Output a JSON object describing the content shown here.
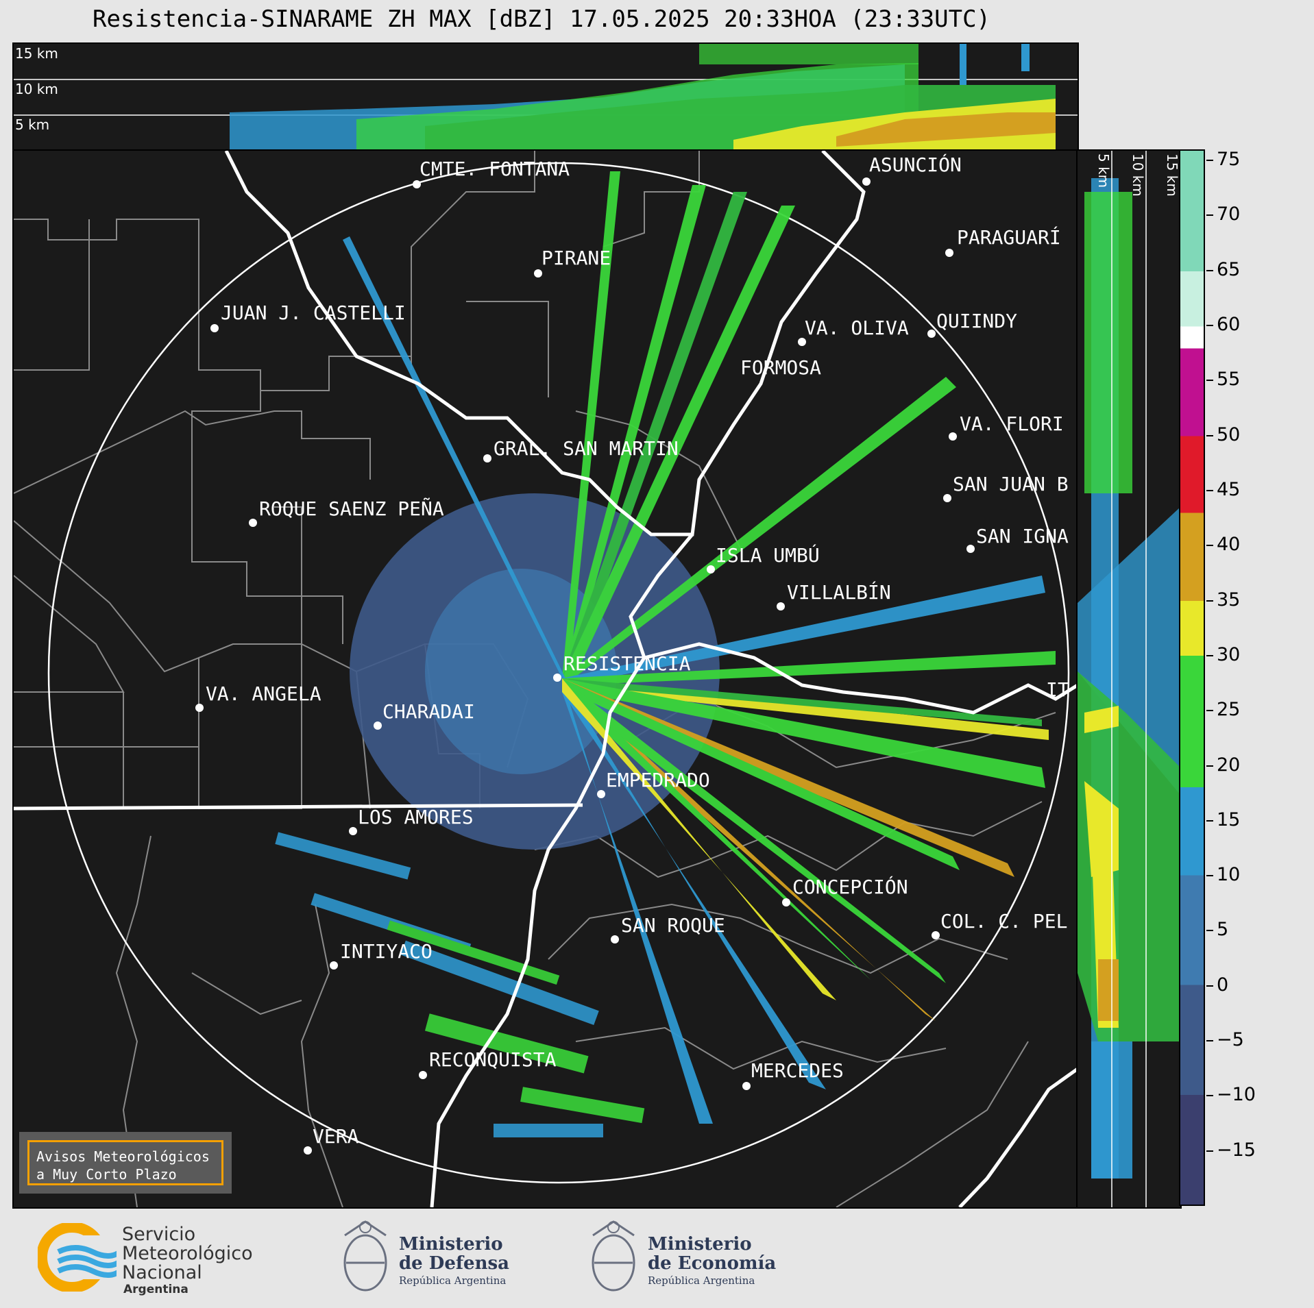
{
  "title": "Resistencia-SINARAME ZH MAX [dBZ] 17.05.2025 20:33HOA (23:33UTC)",
  "top_panel": {
    "alt_labels": [
      "15 km",
      "10 km",
      "5 km"
    ]
  },
  "side_panel": {
    "alt_labels": [
      "5 km",
      "10 km",
      "15 km"
    ]
  },
  "places": [
    {
      "name": "CMTE. FONTANA"
    },
    {
      "name": "ASUNCIÓN"
    },
    {
      "name": "PARAGUARÍ"
    },
    {
      "name": "PIRANE"
    },
    {
      "name": "JUAN J. CASTELLI"
    },
    {
      "name": "VA. OLIVA"
    },
    {
      "name": "QUIINDY"
    },
    {
      "name": "FORMOSA"
    },
    {
      "name": "VA. FLORI"
    },
    {
      "name": "GRAL. SAN MARTIN"
    },
    {
      "name": "SAN JUAN B"
    },
    {
      "name": "ROQUE SAENZ PEÑA"
    },
    {
      "name": "SAN IGNA"
    },
    {
      "name": "ISLA UMBÚ"
    },
    {
      "name": "VILLALBÍN"
    },
    {
      "name": "RESISTENCIA"
    },
    {
      "name": "VA. ANGELA"
    },
    {
      "name": "CHARADAI"
    },
    {
      "name": "IT"
    },
    {
      "name": "EMPEDRADO"
    },
    {
      "name": "LOS AMORES"
    },
    {
      "name": "CONCEPCIÓN"
    },
    {
      "name": "SAN ROQUE"
    },
    {
      "name": "COL. C. PEL"
    },
    {
      "name": "INTIYACO"
    },
    {
      "name": "RECONQUISTA"
    },
    {
      "name": "MERCEDES"
    },
    {
      "name": "VERA"
    }
  ],
  "avisos": {
    "line1": "Avisos Meteorológicos",
    "line2": "a Muy Corto Plazo"
  },
  "colorbar": {
    "unit": "dBZ",
    "min": -20,
    "max": 76,
    "ticks": [
      "75",
      "70",
      "65",
      "60",
      "55",
      "50",
      "45",
      "40",
      "35",
      "30",
      "25",
      "20",
      "15",
      "10",
      "5",
      "0",
      "−5",
      "−10",
      "−15"
    ],
    "tick_values": [
      75,
      70,
      65,
      60,
      55,
      50,
      45,
      40,
      35,
      30,
      25,
      20,
      15,
      10,
      5,
      0,
      -5,
      -10,
      -15
    ],
    "stops": [
      {
        "from": -20,
        "color": "#3b3f6e"
      },
      {
        "from": -10,
        "color": "#3e5a8a"
      },
      {
        "from": 0,
        "color": "#3f7bb0"
      },
      {
        "from": 10,
        "color": "#2f98d0"
      },
      {
        "from": 18,
        "color": "#3ad63a"
      },
      {
        "from": 30,
        "color": "#e8e82a"
      },
      {
        "from": 35,
        "color": "#d4a020"
      },
      {
        "from": 43,
        "color": "#e01a2a"
      },
      {
        "from": 50,
        "color": "#c01090"
      },
      {
        "from": 58,
        "color": "#ffffff"
      },
      {
        "from": 60,
        "color": "#c8f0e0"
      },
      {
        "from": 65,
        "color": "#80d8b8"
      }
    ]
  },
  "logos": {
    "smn": {
      "line1": "Servicio",
      "line2": "Meteorológico",
      "line3": "Nacional",
      "line4": "Argentina"
    },
    "defensa": {
      "line1": "Ministerio",
      "line2": "de Defensa",
      "line3": "República Argentina"
    },
    "economia": {
      "line1": "Ministerio",
      "line2": "de Economía",
      "line3": "República Argentina"
    }
  },
  "colors": {
    "background": "#e6e6e6",
    "panel": "#1a1a1a",
    "accent": "#f5a000"
  }
}
